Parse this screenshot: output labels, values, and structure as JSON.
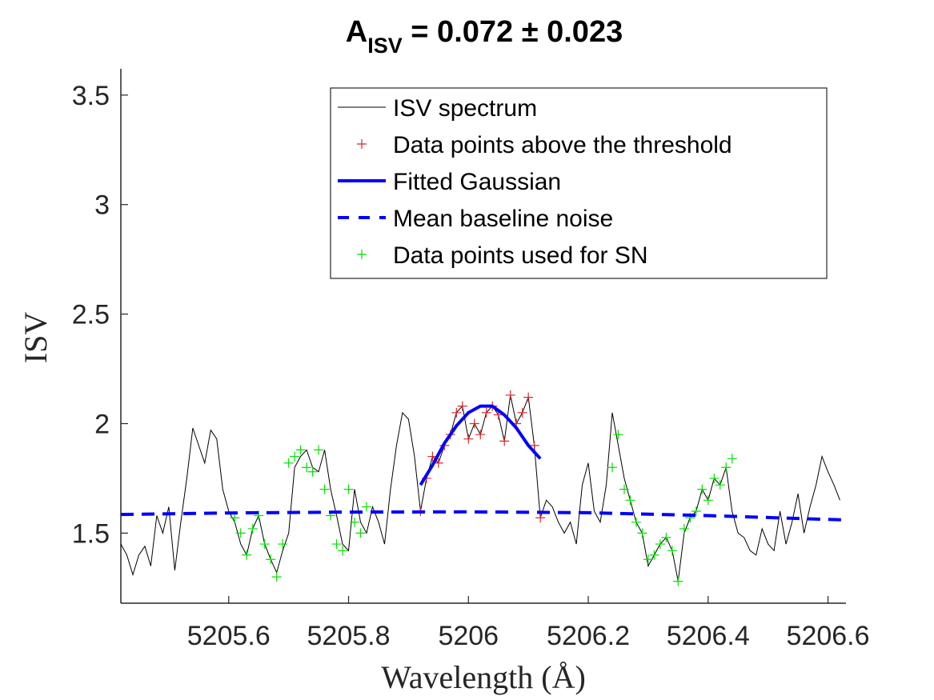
{
  "chart_data": {
    "type": "line",
    "title": {
      "main": "A",
      "sub": "ISV",
      "rest": " = 0.072 ± 0.023"
    },
    "xlabel": "Wavelength (Å)",
    "ylabel": "ISV",
    "xlim": [
      5205.42,
      5206.63
    ],
    "ylim": [
      1.18,
      3.62
    ],
    "xticks": [
      5205.6,
      5205.8,
      5206.0,
      5206.2,
      5206.4,
      5206.6
    ],
    "xtick_labels": [
      "5205.6",
      "5205.8",
      "5206",
      "5206.2",
      "5206.4",
      "5206.6"
    ],
    "yticks": [
      1.5,
      2.0,
      2.5,
      3.0,
      3.5
    ],
    "ytick_labels": [
      "1.5",
      "2",
      "2.5",
      "3",
      "3.5"
    ],
    "legend_position": "top-right",
    "legend": [
      {
        "label": "ISV spectrum",
        "style": "thin-line",
        "color": "#000000"
      },
      {
        "label": "Data points above the threshold",
        "style": "plus",
        "color": "#d62728"
      },
      {
        "label": "Fitted Gaussian",
        "style": "thick-line",
        "color": "#0000ff"
      },
      {
        "label": "Mean baseline noise",
        "style": "dashed-line",
        "color": "#0000ff"
      },
      {
        "label": "Data points used for SN",
        "style": "plus",
        "color": "#00e000"
      }
    ],
    "series": [
      {
        "name": "ISV spectrum",
        "color": "#000000",
        "x": [
          5205.42,
          5205.43,
          5205.44,
          5205.45,
          5205.46,
          5205.47,
          5205.48,
          5205.49,
          5205.5,
          5205.51,
          5205.52,
          5205.53,
          5205.54,
          5205.55,
          5205.56,
          5205.57,
          5205.58,
          5205.59,
          5205.6,
          5205.61,
          5205.62,
          5205.63,
          5205.64,
          5205.65,
          5205.66,
          5205.67,
          5205.68,
          5205.69,
          5205.7,
          5205.71,
          5205.72,
          5205.73,
          5205.74,
          5205.75,
          5205.76,
          5205.77,
          5205.78,
          5205.79,
          5205.8,
          5205.81,
          5205.82,
          5205.83,
          5205.84,
          5205.85,
          5205.86,
          5205.87,
          5205.88,
          5205.89,
          5205.9,
          5205.91,
          5205.92,
          5205.93,
          5205.94,
          5205.95,
          5205.96,
          5205.97,
          5205.98,
          5205.99,
          5206.0,
          5206.01,
          5206.02,
          5206.03,
          5206.04,
          5206.05,
          5206.06,
          5206.07,
          5206.08,
          5206.09,
          5206.1,
          5206.11,
          5206.12,
          5206.13,
          5206.14,
          5206.15,
          5206.16,
          5206.17,
          5206.18,
          5206.19,
          5206.2,
          5206.21,
          5206.22,
          5206.23,
          5206.24,
          5206.25,
          5206.26,
          5206.27,
          5206.28,
          5206.29,
          5206.3,
          5206.31,
          5206.32,
          5206.33,
          5206.34,
          5206.35,
          5206.36,
          5206.37,
          5206.38,
          5206.39,
          5206.4,
          5206.41,
          5206.42,
          5206.43,
          5206.44,
          5206.45,
          5206.46,
          5206.47,
          5206.48,
          5206.49,
          5206.5,
          5206.51,
          5206.52,
          5206.53,
          5206.54,
          5206.55,
          5206.56,
          5206.57,
          5206.58,
          5206.59,
          5206.6,
          5206.61,
          5206.62
        ],
        "y": [
          1.45,
          1.4,
          1.31,
          1.4,
          1.44,
          1.35,
          1.58,
          1.5,
          1.62,
          1.33,
          1.55,
          1.75,
          1.98,
          1.9,
          1.82,
          1.97,
          1.93,
          1.7,
          1.6,
          1.55,
          1.45,
          1.4,
          1.52,
          1.58,
          1.45,
          1.38,
          1.32,
          1.42,
          1.5,
          1.8,
          1.85,
          1.88,
          1.8,
          1.78,
          1.88,
          1.7,
          1.58,
          1.45,
          1.42,
          1.7,
          1.55,
          1.5,
          1.62,
          1.55,
          1.45,
          1.7,
          1.9,
          2.05,
          2.02,
          1.85,
          1.6,
          1.75,
          1.85,
          1.82,
          1.9,
          1.95,
          2.05,
          2.08,
          1.93,
          2.0,
          1.95,
          2.05,
          2.08,
          2.04,
          1.92,
          2.13,
          2.0,
          2.05,
          2.12,
          1.9,
          1.57,
          1.65,
          1.62,
          1.55,
          1.5,
          1.55,
          1.45,
          1.72,
          1.82,
          1.6,
          1.55,
          1.72,
          2.05,
          1.9,
          1.75,
          1.65,
          1.55,
          1.5,
          1.35,
          1.4,
          1.45,
          1.48,
          1.42,
          1.28,
          1.5,
          1.57,
          1.6,
          1.7,
          1.65,
          1.75,
          1.72,
          1.8,
          1.6,
          1.5,
          1.48,
          1.42,
          1.4,
          1.52,
          1.45,
          1.42,
          1.6,
          1.45,
          1.55,
          1.68,
          1.5,
          1.62,
          1.72,
          1.85,
          1.78,
          1.72,
          1.65
        ]
      },
      {
        "name": "Data points above the threshold",
        "color": "#d62728",
        "x": [
          5205.92,
          5205.93,
          5205.94,
          5205.95,
          5205.96,
          5205.97,
          5205.98,
          5205.99,
          5206.0,
          5206.01,
          5206.02,
          5206.03,
          5206.04,
          5206.05,
          5206.06,
          5206.07,
          5206.08,
          5206.09,
          5206.1,
          5206.11,
          5206.12
        ],
        "y": [
          1.6,
          1.75,
          1.85,
          1.82,
          1.9,
          1.95,
          2.05,
          2.08,
          1.93,
          2.0,
          1.95,
          2.05,
          2.08,
          2.04,
          1.92,
          2.13,
          2.0,
          2.05,
          2.12,
          1.9,
          1.57
        ]
      },
      {
        "name": "Fitted Gaussian",
        "color": "#0000ff",
        "x": [
          5205.92,
          5205.94,
          5205.96,
          5205.98,
          5206.0,
          5206.02,
          5206.04,
          5206.06,
          5206.08,
          5206.1,
          5206.12
        ],
        "y": [
          1.72,
          1.81,
          1.91,
          1.99,
          2.05,
          2.08,
          2.08,
          2.04,
          1.98,
          1.9,
          1.84
        ]
      },
      {
        "name": "Mean baseline noise",
        "color": "#0000ff",
        "x": [
          5205.42,
          5205.6,
          5205.8,
          5206.0,
          5206.2,
          5206.4,
          5206.63
        ],
        "y": [
          1.585,
          1.592,
          1.596,
          1.597,
          1.593,
          1.58,
          1.56
        ]
      },
      {
        "name": "Data points used for SN",
        "color": "#00e000",
        "x": [
          5205.61,
          5205.62,
          5205.63,
          5205.64,
          5205.65,
          5205.66,
          5205.67,
          5205.68,
          5205.69,
          5205.7,
          5205.71,
          5205.72,
          5205.73,
          5205.74,
          5205.75,
          5205.76,
          5205.77,
          5205.78,
          5205.79,
          5205.8,
          5205.81,
          5205.82,
          5205.83,
          5206.27,
          5206.28,
          5206.29,
          5206.3,
          5206.31,
          5206.32,
          5206.33,
          5206.34,
          5206.35,
          5206.36,
          5206.37,
          5206.38,
          5206.39,
          5206.4,
          5206.41,
          5206.42,
          5206.43,
          5206.44,
          5206.25,
          5206.24,
          5206.26
        ],
        "y": [
          1.57,
          1.5,
          1.4,
          1.52,
          1.58,
          1.45,
          1.38,
          1.3,
          1.45,
          1.82,
          1.85,
          1.88,
          1.8,
          1.78,
          1.88,
          1.7,
          1.58,
          1.45,
          1.42,
          1.7,
          1.55,
          1.5,
          1.62,
          1.65,
          1.55,
          1.5,
          1.38,
          1.4,
          1.45,
          1.48,
          1.42,
          1.28,
          1.52,
          1.57,
          1.6,
          1.7,
          1.65,
          1.75,
          1.72,
          1.8,
          1.84,
          1.95,
          1.8,
          1.7
        ]
      }
    ]
  }
}
